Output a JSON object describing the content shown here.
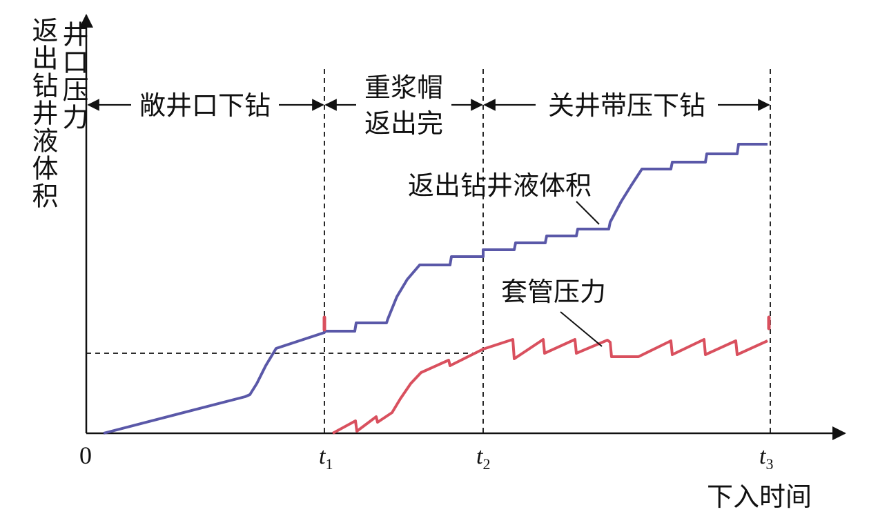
{
  "y_axis_labels": [
    "返出钻井液体积",
    "井口压力"
  ],
  "x_axis_label": "下入时间",
  "origin_label": "0",
  "ticks": [
    {
      "base": "t",
      "sub": "1"
    },
    {
      "base": "t",
      "sub": "2"
    },
    {
      "base": "t",
      "sub": "3"
    }
  ],
  "phases": [
    {
      "label_lines": [
        "敞井口下钻"
      ]
    },
    {
      "label_lines": [
        "重浆帽",
        "返出完"
      ]
    },
    {
      "label_lines": [
        "关井带压下钻"
      ]
    }
  ],
  "curves": [
    {
      "name": "返出钻井液体积",
      "color": "#5a58a8"
    },
    {
      "name": "套管压力",
      "color": "#d9505e"
    }
  ]
}
